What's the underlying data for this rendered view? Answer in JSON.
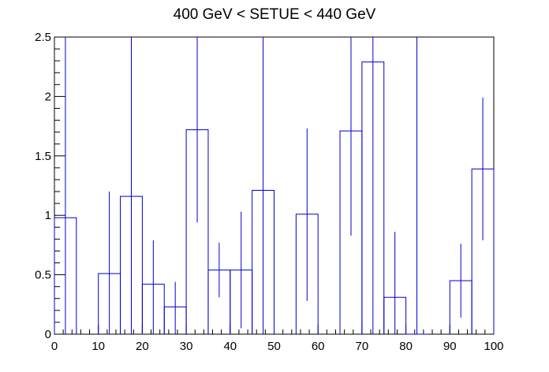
{
  "chart_data": {
    "type": "histogram",
    "title": "400 GeV < SETUE < 440 GeV",
    "xlabel": "",
    "ylabel": "",
    "xlim": [
      0,
      100
    ],
    "ylim": [
      0,
      2.5
    ],
    "bin_width": 5,
    "bins": [
      {
        "low": 0,
        "high": 5,
        "value": 0.98,
        "err_low": 0,
        "err_high": 2.5
      },
      {
        "low": 10,
        "high": 15,
        "value": 0.51,
        "err_low": 0,
        "err_high": 1.2
      },
      {
        "low": 15,
        "high": 20,
        "value": 1.16,
        "err_low": 0,
        "err_high": 2.5
      },
      {
        "low": 20,
        "high": 25,
        "value": 0.42,
        "err_low": 0,
        "err_high": 0.79
      },
      {
        "low": 25,
        "high": 30,
        "value": 0.23,
        "err_low": 0,
        "err_high": 0.44
      },
      {
        "low": 30,
        "high": 35,
        "value": 1.72,
        "err_low": 0.94,
        "err_high": 2.5
      },
      {
        "low": 35,
        "high": 40,
        "value": 0.54,
        "err_low": 0.31,
        "err_high": 0.77
      },
      {
        "low": 40,
        "high": 45,
        "value": 0.54,
        "err_low": 0.05,
        "err_high": 1.03
      },
      {
        "low": 45,
        "high": 50,
        "value": 1.21,
        "err_low": 0,
        "err_high": 2.5
      },
      {
        "low": 55,
        "high": 60,
        "value": 1.01,
        "err_low": 0.28,
        "err_high": 1.73
      },
      {
        "low": 65,
        "high": 70,
        "value": 1.71,
        "err_low": 0.83,
        "err_high": 2.5
      },
      {
        "low": 70,
        "high": 75,
        "value": 2.29,
        "err_low": 0,
        "err_high": 2.5
      },
      {
        "low": 75,
        "high": 80,
        "value": 0.31,
        "err_low": 0,
        "err_high": 0.86
      },
      {
        "low": 80,
        "high": 85,
        "value": 0.0,
        "err_low": 0,
        "err_high": 2.5
      },
      {
        "low": 90,
        "high": 95,
        "value": 0.45,
        "err_low": 0.14,
        "err_high": 0.76
      },
      {
        "low": 95,
        "high": 100,
        "value": 1.39,
        "err_low": 0.79,
        "err_high": 1.99
      }
    ],
    "x_ticks": [
      0,
      10,
      20,
      30,
      40,
      50,
      60,
      70,
      80,
      90,
      100
    ],
    "x_tick_labels": [
      "0",
      "10",
      "20",
      "30",
      "40",
      "50",
      "60",
      "70",
      "80",
      "90",
      "100"
    ],
    "y_ticks": [
      0,
      0.5,
      1,
      1.5,
      2,
      2.5
    ],
    "y_tick_labels": [
      "0",
      "0.5",
      "1",
      "1.5",
      "2",
      "2.5"
    ],
    "grid": false,
    "legend": "none",
    "line_color": "#0000cc",
    "axis_color": "#000000"
  }
}
